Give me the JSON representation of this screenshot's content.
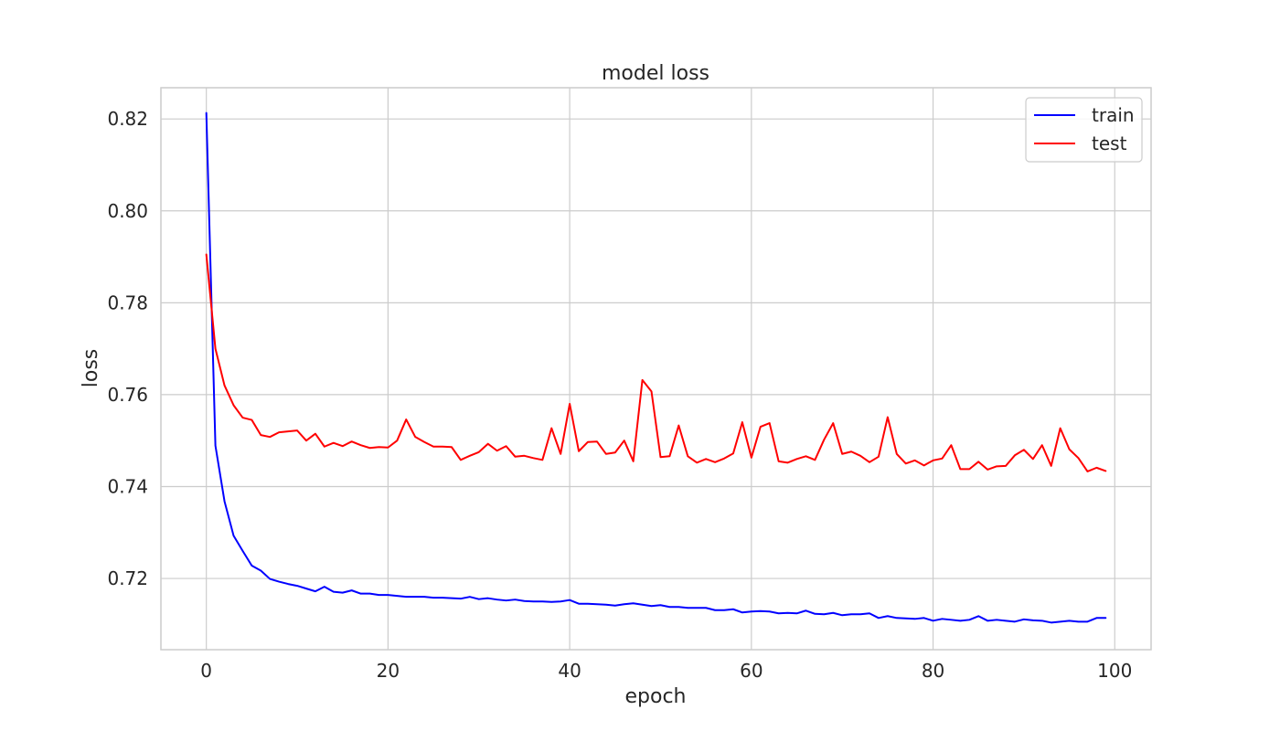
{
  "chart_data": {
    "type": "line",
    "title": "model loss",
    "xlabel": "epoch",
    "ylabel": "loss",
    "xlim": [
      -5,
      104
    ],
    "ylim": [
      0.7045,
      0.8268
    ],
    "xticks": [
      0,
      20,
      40,
      60,
      80,
      100
    ],
    "yticks": [
      0.72,
      0.74,
      0.76,
      0.78,
      0.8,
      0.82
    ],
    "ytick_labels": [
      "0.72",
      "0.74",
      "0.76",
      "0.78",
      "0.80",
      "0.82"
    ],
    "xtick_labels": [
      "0",
      "20",
      "40",
      "60",
      "80",
      "100"
    ],
    "grid": true,
    "legend_position": "top-right",
    "series": [
      {
        "name": "train",
        "color": "#0000ff",
        "x": [
          0,
          1,
          2,
          3,
          4,
          5,
          6,
          7,
          8,
          9,
          10,
          11,
          12,
          13,
          14,
          15,
          16,
          17,
          18,
          19,
          20,
          21,
          22,
          23,
          24,
          25,
          26,
          27,
          28,
          29,
          30,
          31,
          32,
          33,
          34,
          35,
          36,
          37,
          38,
          39,
          40,
          41,
          42,
          43,
          44,
          45,
          46,
          47,
          48,
          49,
          50,
          51,
          52,
          53,
          54,
          55,
          56,
          57,
          58,
          59,
          60,
          61,
          62,
          63,
          64,
          65,
          66,
          67,
          68,
          69,
          70,
          71,
          72,
          73,
          74,
          75,
          76,
          77,
          78,
          79,
          80,
          81,
          82,
          83,
          84,
          85,
          86,
          87,
          88,
          89,
          90,
          91,
          92,
          93,
          94,
          95,
          96,
          97,
          98,
          99
        ],
        "values": [
          0.8213,
          0.7489,
          0.7368,
          0.7293,
          0.726,
          0.7228,
          0.7217,
          0.7199,
          0.7193,
          0.7188,
          0.7184,
          0.7178,
          0.7172,
          0.7182,
          0.7171,
          0.7169,
          0.7174,
          0.7167,
          0.7167,
          0.7164,
          0.7164,
          0.7162,
          0.716,
          0.716,
          0.716,
          0.7158,
          0.7158,
          0.7157,
          0.7156,
          0.716,
          0.7155,
          0.7157,
          0.7154,
          0.7152,
          0.7154,
          0.7151,
          0.715,
          0.715,
          0.7149,
          0.715,
          0.7153,
          0.7145,
          0.7145,
          0.7144,
          0.7143,
          0.7141,
          0.7144,
          0.7146,
          0.7143,
          0.714,
          0.7142,
          0.7138,
          0.7138,
          0.7136,
          0.7136,
          0.7136,
          0.7131,
          0.7131,
          0.7133,
          0.7126,
          0.7128,
          0.7129,
          0.7128,
          0.7124,
          0.7125,
          0.7124,
          0.713,
          0.7123,
          0.7122,
          0.7125,
          0.712,
          0.7122,
          0.7122,
          0.7124,
          0.7114,
          0.7118,
          0.7114,
          0.7113,
          0.7112,
          0.7114,
          0.7108,
          0.7112,
          0.711,
          0.7108,
          0.711,
          0.7118,
          0.7108,
          0.711,
          0.7108,
          0.7106,
          0.7111,
          0.7109,
          0.7108,
          0.7104,
          0.7106,
          0.7108,
          0.7106,
          0.7106,
          0.7114,
          0.7114
        ]
      },
      {
        "name": "test",
        "color": "#ff0000",
        "x": [
          0,
          1,
          2,
          3,
          4,
          5,
          6,
          7,
          8,
          9,
          10,
          11,
          12,
          13,
          14,
          15,
          16,
          17,
          18,
          19,
          20,
          21,
          22,
          23,
          24,
          25,
          26,
          27,
          28,
          29,
          30,
          31,
          32,
          33,
          34,
          35,
          36,
          37,
          38,
          39,
          40,
          41,
          42,
          43,
          44,
          45,
          46,
          47,
          48,
          49,
          50,
          51,
          52,
          53,
          54,
          55,
          56,
          57,
          58,
          59,
          60,
          61,
          62,
          63,
          64,
          65,
          66,
          67,
          68,
          69,
          70,
          71,
          72,
          73,
          74,
          75,
          76,
          77,
          78,
          79,
          80,
          81,
          82,
          83,
          84,
          85,
          86,
          87,
          88,
          89,
          90,
          91,
          92,
          93,
          94,
          95,
          96,
          97,
          98,
          99
        ],
        "values": [
          0.7905,
          0.77,
          0.762,
          0.7577,
          0.755,
          0.7545,
          0.7512,
          0.7508,
          0.7518,
          0.752,
          0.7522,
          0.75,
          0.7515,
          0.7487,
          0.7495,
          0.7488,
          0.7498,
          0.749,
          0.7484,
          0.7486,
          0.7485,
          0.75,
          0.7546,
          0.7508,
          0.7497,
          0.7487,
          0.7487,
          0.7486,
          0.7458,
          0.7467,
          0.7475,
          0.7493,
          0.7478,
          0.7488,
          0.7465,
          0.7467,
          0.7462,
          0.7458,
          0.7527,
          0.7471,
          0.758,
          0.7477,
          0.7497,
          0.7498,
          0.7471,
          0.7474,
          0.75,
          0.7455,
          0.7632,
          0.7607,
          0.7464,
          0.7466,
          0.7533,
          0.7466,
          0.7452,
          0.746,
          0.7453,
          0.7461,
          0.7472,
          0.754,
          0.7463,
          0.753,
          0.7538,
          0.7455,
          0.7452,
          0.746,
          0.7466,
          0.7458,
          0.7502,
          0.7538,
          0.7471,
          0.7476,
          0.7467,
          0.7453,
          0.7465,
          0.7551,
          0.7471,
          0.745,
          0.7457,
          0.7446,
          0.7457,
          0.7461,
          0.749,
          0.7438,
          0.7438,
          0.7454,
          0.7437,
          0.7444,
          0.7445,
          0.7468,
          0.748,
          0.746,
          0.749,
          0.7445,
          0.7527,
          0.7481,
          0.7462,
          0.7433,
          0.7441,
          0.7434
        ]
      }
    ]
  }
}
